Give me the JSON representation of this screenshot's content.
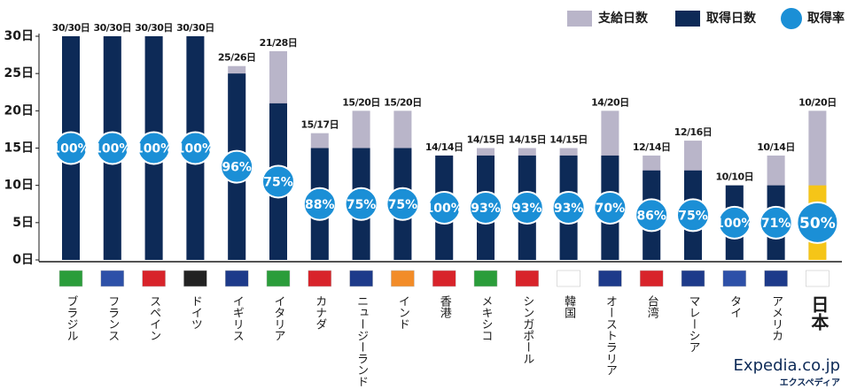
{
  "chart_data": {
    "type": "bar",
    "categories": [
      "ブラジル",
      "フランス",
      "スペイン",
      "ドイツ",
      "イギリス",
      "イタリア",
      "カナダ",
      "ニュージーランド",
      "インド",
      "香港",
      "メキシコ",
      "シンガポール",
      "韓国",
      "オーストラリア",
      "台湾",
      "マレーシア",
      "タイ",
      "アメリカ",
      "日本"
    ],
    "series": [
      {
        "name": "支給日数",
        "color": "#b9b5c9",
        "values": [
          30,
          30,
          30,
          30,
          26,
          28,
          17,
          20,
          20,
          14,
          15,
          15,
          15,
          20,
          14,
          16,
          10,
          14,
          20
        ]
      },
      {
        "name": "取得日数",
        "color": "#0d2a57",
        "colors": [
          "#0d2a57",
          "#0d2a57",
          "#0d2a57",
          "#0d2a57",
          "#0d2a57",
          "#0d2a57",
          "#0d2a57",
          "#0d2a57",
          "#0d2a57",
          "#0d2a57",
          "#0d2a57",
          "#0d2a57",
          "#0d2a57",
          "#0d2a57",
          "#0d2a57",
          "#0d2a57",
          "#0d2a57",
          "#0d2a57",
          "#f5c518"
        ],
        "values": [
          30,
          30,
          30,
          30,
          25,
          21,
          15,
          15,
          15,
          14,
          14,
          14,
          14,
          14,
          12,
          12,
          10,
          10,
          10
        ]
      }
    ],
    "bar_labels": [
      "30/30日",
      "30/30日",
      "30/30日",
      "30/30日",
      "25/26日",
      "21/28日",
      "15/17日",
      "15/20日",
      "15/20日",
      "14/14日",
      "14/15日",
      "14/15日",
      "14/15日",
      "14/20日",
      "12/14日",
      "12/16日",
      "10/10日",
      "10/14日",
      "10/20日"
    ],
    "rate_name": "取得率",
    "rate_color": "#1b8fd6",
    "rates": [
      100,
      100,
      100,
      100,
      96,
      75,
      88,
      75,
      75,
      100,
      93,
      93,
      93,
      70,
      86,
      75,
      100,
      71,
      50
    ],
    "rate_labels": [
      "100%",
      "100%",
      "100%",
      "100%",
      "96%",
      "75%",
      "88%",
      "75%",
      "75%",
      "100%",
      "93%",
      "93%",
      "93%",
      "70%",
      "86%",
      "75%",
      "100%",
      "71%",
      "50%"
    ],
    "ylim": [
      0,
      30
    ],
    "yticks": [
      {
        "value": 0,
        "label": "0日"
      },
      {
        "value": 5,
        "label": "5日"
      },
      {
        "value": 10,
        "label": "10日"
      },
      {
        "value": 15,
        "label": "15日"
      },
      {
        "value": 20,
        "label": "20日"
      },
      {
        "value": 25,
        "label": "25日"
      },
      {
        "value": 30,
        "label": "30日"
      }
    ],
    "source": {
      "name": "Expedia.co.jp",
      "subtitle": "エクスペディア"
    }
  }
}
